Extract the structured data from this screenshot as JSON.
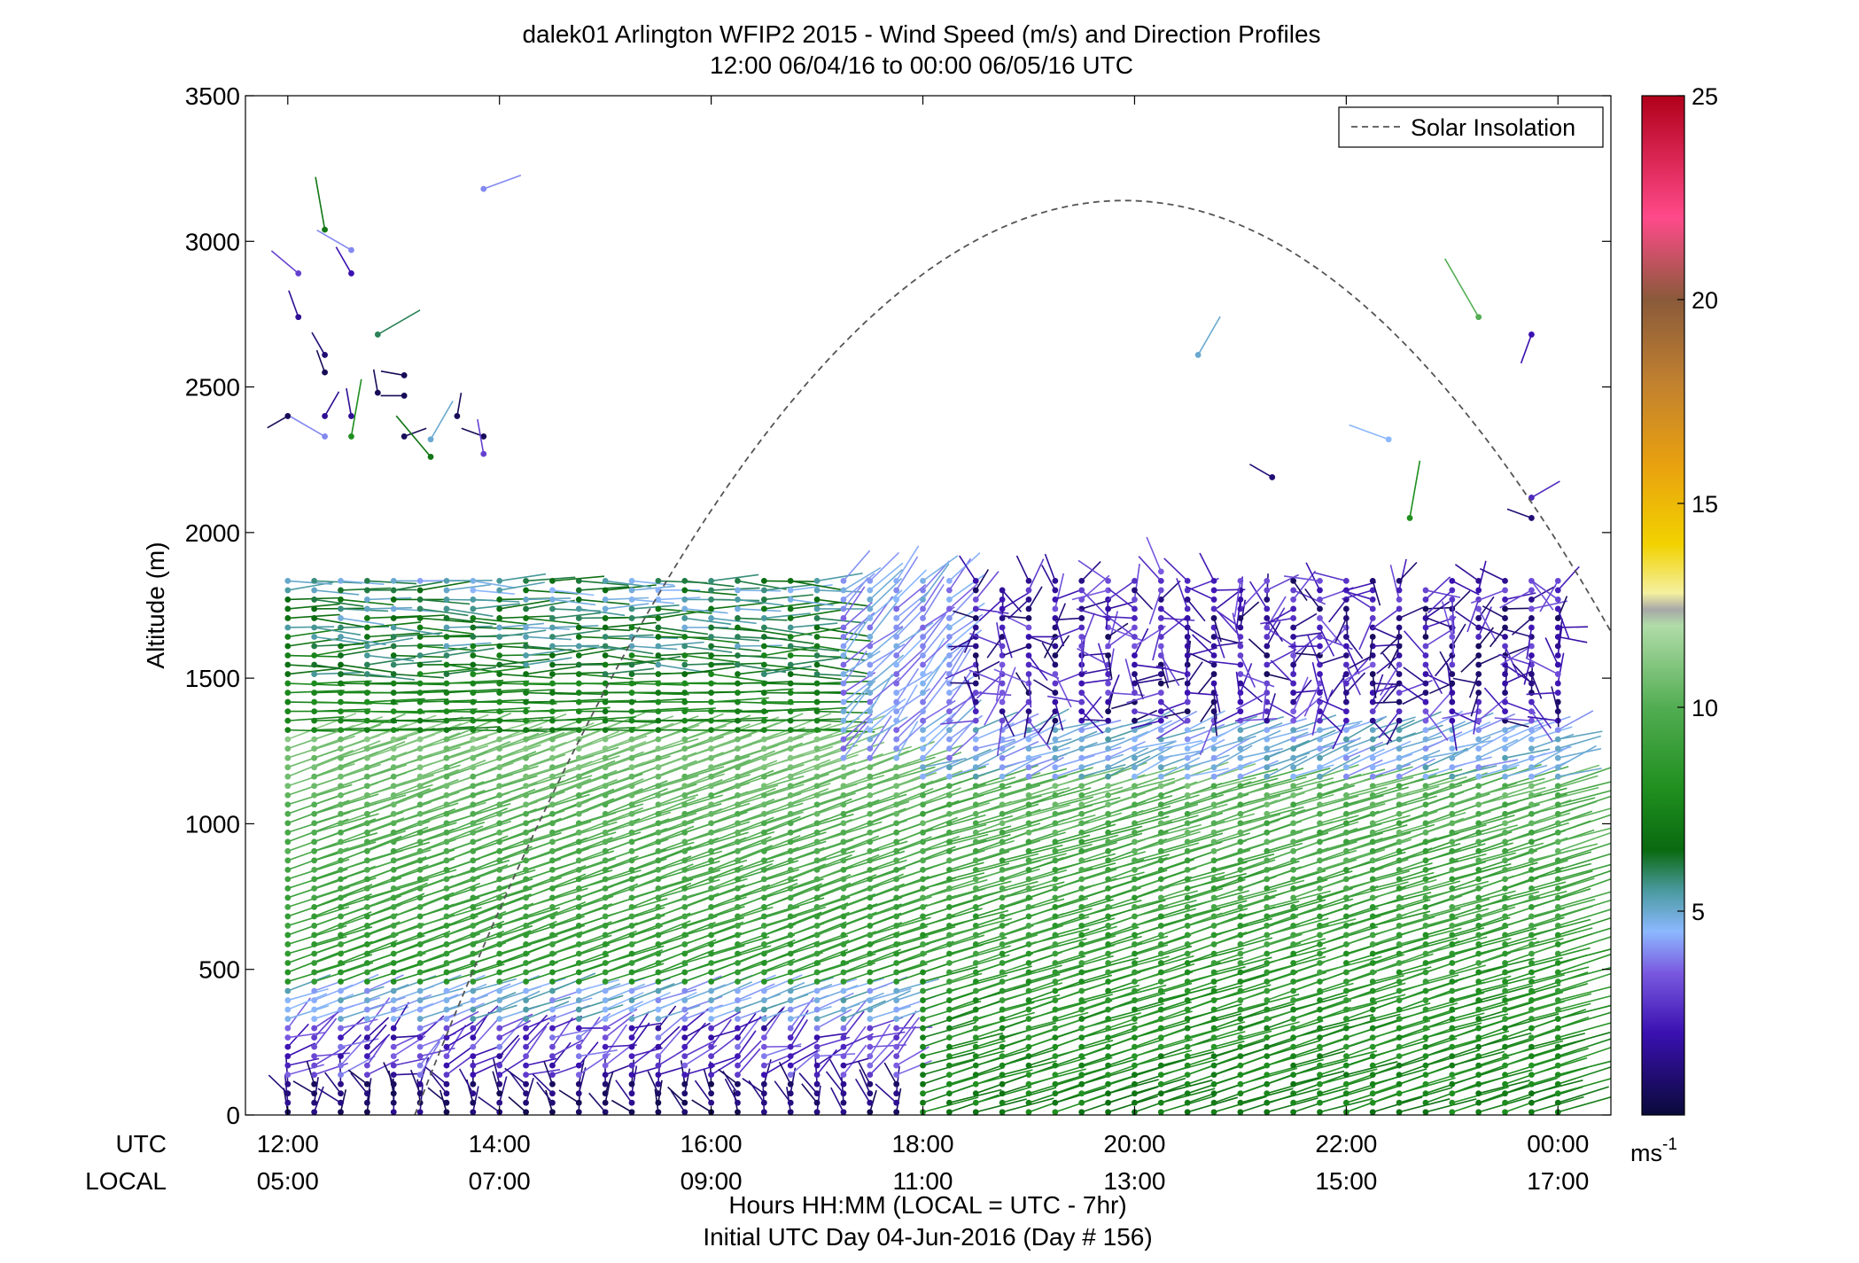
{
  "title_line1": "dalek01 Arlington WFIP2 2015 - Wind Speed (m/s) and Direction Profiles",
  "title_line2": "12:00 06/04/16 to 00:00 06/05/16  UTC",
  "ylabel": "Altitude (m)",
  "xlabel_line1": "Hours HH:MM  (LOCAL = UTC - 7hr)",
  "xlabel_line2": "Initial UTC Day 04-Jun-2016 (Day # 156)",
  "row_label_utc": "UTC",
  "row_label_local": "LOCAL",
  "legend_label": "Solar Insolation",
  "colorbar_unit_base": "ms",
  "colorbar_unit_exp": "-1",
  "chart_data": {
    "type": "wind-barb-profile",
    "ylim": [
      0,
      3500
    ],
    "y_ticks": [
      0,
      500,
      1000,
      1500,
      2000,
      2500,
      3000,
      3500
    ],
    "x_range_hours": [
      11.6,
      24.5
    ],
    "x_ticks": [
      {
        "hour": 12,
        "utc": "12:00",
        "local": "05:00"
      },
      {
        "hour": 14,
        "utc": "14:00",
        "local": "07:00"
      },
      {
        "hour": 16,
        "utc": "16:00",
        "local": "09:00"
      },
      {
        "hour": 18,
        "utc": "18:00",
        "local": "11:00"
      },
      {
        "hour": 20,
        "utc": "20:00",
        "local": "13:00"
      },
      {
        "hour": 22,
        "utc": "22:00",
        "local": "15:00"
      },
      {
        "hour": 24,
        "utc": "00:00",
        "local": "17:00"
      }
    ],
    "colorbar": {
      "range": [
        0,
        25
      ],
      "ticks": [
        5,
        10,
        15,
        20,
        25
      ],
      "stops": [
        {
          "v": 0,
          "c": "#0a0a3a"
        },
        {
          "v": 2,
          "c": "#3a10b0"
        },
        {
          "v": 3.5,
          "c": "#7a5ae0"
        },
        {
          "v": 4.5,
          "c": "#8cb8ff"
        },
        {
          "v": 5.5,
          "c": "#4a9aa0"
        },
        {
          "v": 6.5,
          "c": "#0a6a10"
        },
        {
          "v": 8,
          "c": "#1f8f1f"
        },
        {
          "v": 10,
          "c": "#52ad52"
        },
        {
          "v": 12,
          "c": "#b0dca8"
        },
        {
          "v": 12.4,
          "c": "#a8a8a8"
        },
        {
          "v": 12.8,
          "c": "#f4f0a0"
        },
        {
          "v": 14,
          "c": "#f2d200"
        },
        {
          "v": 16,
          "c": "#e8a010"
        },
        {
          "v": 18,
          "c": "#c08030"
        },
        {
          "v": 20,
          "c": "#8a5a3a"
        },
        {
          "v": 22,
          "c": "#ff4a8a"
        },
        {
          "v": 25,
          "c": "#b0001a"
        }
      ]
    },
    "solar_insolation": {
      "style": "dashed",
      "color": "#555555",
      "start": {
        "hour": 13.2,
        "alt": 0
      },
      "peak": {
        "hour": 19.9,
        "alt": 3140
      },
      "end": {
        "hour": 24.5,
        "alt": 1700
      }
    },
    "profiles": {
      "time_start_hour": 12.0,
      "time_step_hour": 0.25,
      "count": 49,
      "alt_step_m": 32,
      "alt_start_m": 10
    },
    "upper_scattered_barbs": [
      {
        "hour": 12.1,
        "alt": 2890,
        "speed": 3.0,
        "dir": 310
      },
      {
        "hour": 12.1,
        "alt": 2740,
        "speed": 1.5,
        "dir": 340
      },
      {
        "hour": 12.0,
        "alt": 2400,
        "speed": 0.5,
        "dir": 240
      },
      {
        "hour": 12.35,
        "alt": 3040,
        "speed": 7.0,
        "dir": 350
      },
      {
        "hour": 12.35,
        "alt": 2610,
        "speed": 1.0,
        "dir": 330
      },
      {
        "hour": 12.35,
        "alt": 2550,
        "speed": 0.5,
        "dir": 340
      },
      {
        "hour": 12.35,
        "alt": 2400,
        "speed": 1.5,
        "dir": 30
      },
      {
        "hour": 12.35,
        "alt": 2330,
        "speed": 4.0,
        "dir": 300
      },
      {
        "hour": 12.6,
        "alt": 2970,
        "speed": 4.0,
        "dir": 300
      },
      {
        "hour": 12.6,
        "alt": 2890,
        "speed": 2.0,
        "dir": 330
      },
      {
        "hour": 12.6,
        "alt": 2400,
        "speed": 1.5,
        "dir": 350
      },
      {
        "hour": 12.6,
        "alt": 2330,
        "speed": 8.0,
        "dir": 10
      },
      {
        "hour": 12.85,
        "alt": 2680,
        "speed": 6.0,
        "dir": 60
      },
      {
        "hour": 12.85,
        "alt": 2480,
        "speed": 0.5,
        "dir": 350
      },
      {
        "hour": 13.1,
        "alt": 2540,
        "speed": 0.5,
        "dir": 280
      },
      {
        "hour": 13.1,
        "alt": 2470,
        "speed": 0.5,
        "dir": 270
      },
      {
        "hour": 13.1,
        "alt": 2330,
        "speed": 0.5,
        "dir": 70
      },
      {
        "hour": 13.35,
        "alt": 2260,
        "speed": 7.0,
        "dir": 320
      },
      {
        "hour": 13.35,
        "alt": 2320,
        "speed": 5.0,
        "dir": 30
      },
      {
        "hour": 13.6,
        "alt": 2400,
        "speed": 0.5,
        "dir": 10
      },
      {
        "hour": 13.85,
        "alt": 2330,
        "speed": 0.5,
        "dir": 290
      },
      {
        "hour": 13.85,
        "alt": 2270,
        "speed": 3.0,
        "dir": 350
      },
      {
        "hour": 13.85,
        "alt": 3180,
        "speed": 4.0,
        "dir": 70
      },
      {
        "hour": 20.6,
        "alt": 2610,
        "speed": 5.0,
        "dir": 30
      },
      {
        "hour": 21.3,
        "alt": 2190,
        "speed": 1.0,
        "dir": 300
      },
      {
        "hour": 22.4,
        "alt": 2320,
        "speed": 4.5,
        "dir": 290
      },
      {
        "hour": 22.6,
        "alt": 2050,
        "speed": 8.0,
        "dir": 10
      },
      {
        "hour": 23.25,
        "alt": 2740,
        "speed": 10.0,
        "dir": 330
      },
      {
        "hour": 23.75,
        "alt": 2680,
        "speed": 2.0,
        "dir": 200
      },
      {
        "hour": 23.75,
        "alt": 2120,
        "speed": 2.5,
        "dir": 60
      },
      {
        "hour": 23.75,
        "alt": 2050,
        "speed": 1.0,
        "dir": 290
      }
    ]
  }
}
